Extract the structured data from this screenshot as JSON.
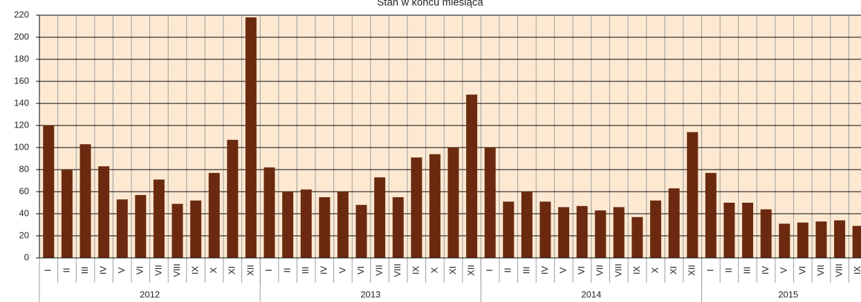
{
  "chart_data": {
    "type": "bar",
    "title": "Stan w końcu miesiąca",
    "color": "#6b2a10",
    "ylim": [
      0,
      220
    ],
    "yticks": [
      0,
      20,
      40,
      60,
      80,
      100,
      120,
      140,
      160,
      180,
      200,
      220
    ],
    "grid": true,
    "groups": [
      {
        "name": "2012",
        "categories": [
          "I",
          "II",
          "III",
          "IV",
          "V",
          "VI",
          "VII",
          "VIII",
          "IX",
          "X",
          "XI",
          "XII"
        ],
        "values": [
          120,
          80,
          103,
          83,
          53,
          57,
          71,
          49,
          52,
          77,
          107,
          218
        ]
      },
      {
        "name": "2013",
        "categories": [
          "I",
          "II",
          "III",
          "IV",
          "V",
          "VI",
          "VII",
          "VIII",
          "IX",
          "X",
          "XI",
          "XII"
        ],
        "values": [
          82,
          60,
          62,
          55,
          60,
          48,
          73,
          55,
          91,
          94,
          100,
          148
        ]
      },
      {
        "name": "2014",
        "categories": [
          "I",
          "II",
          "III",
          "IV",
          "V",
          "VI",
          "VII",
          "VIII",
          "IX",
          "X",
          "XI",
          "XII"
        ],
        "values": [
          100,
          51,
          60,
          51,
          46,
          47,
          43,
          46,
          37,
          52,
          63,
          114
        ]
      },
      {
        "name": "2015",
        "categories": [
          "I",
          "II",
          "III",
          "IV",
          "V",
          "VI",
          "VII",
          "VIII",
          "IX"
        ],
        "values": [
          77,
          50,
          50,
          44,
          31,
          32,
          33,
          34,
          29
        ]
      }
    ]
  }
}
